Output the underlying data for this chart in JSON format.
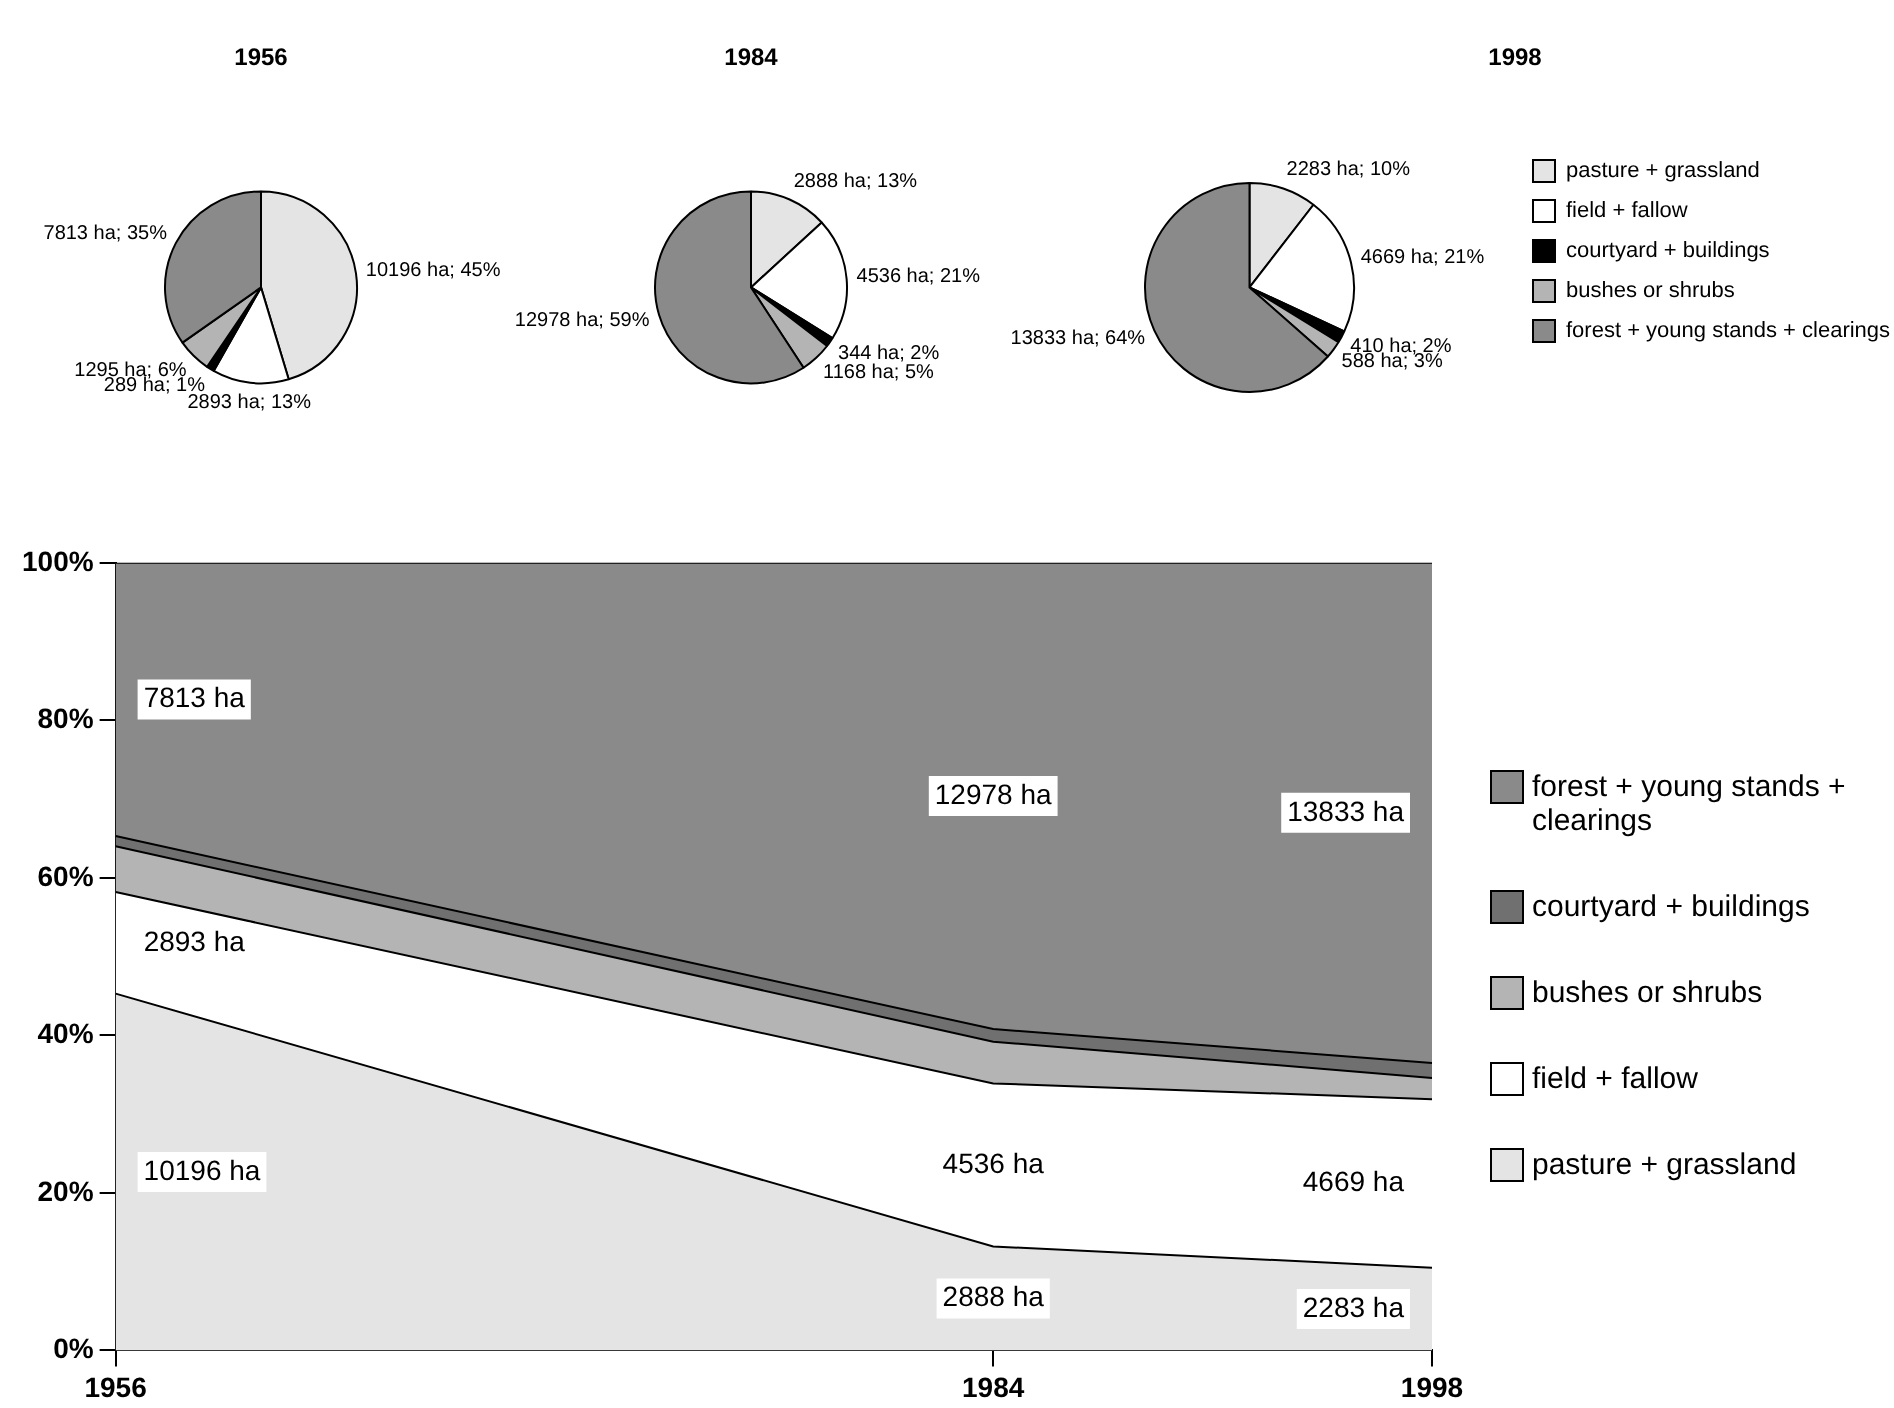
{
  "chart_data": [
    {
      "type": "pie",
      "title": "1956",
      "values": [
        10196,
        2893,
        289,
        1295,
        7813
      ],
      "colors": [
        "#e4e4e4",
        "#ffffff",
        "#000000",
        "#b4b4b4",
        "#8a8a8a"
      ],
      "value_labels": [
        "10196 ha; 45%",
        "2893 ha; 13%",
        "289 ha; 1%",
        "1295 ha; 6%",
        "7813 ha; 35%"
      ]
    },
    {
      "type": "pie",
      "title": "1984",
      "values": [
        2888,
        4536,
        344,
        1168,
        12978
      ],
      "colors": [
        "#e4e4e4",
        "#ffffff",
        "#000000",
        "#b4b4b4",
        "#8a8a8a"
      ],
      "value_labels": [
        "2888 ha; 13%",
        "4536 ha; 21%",
        "344 ha; 2%",
        "1168 ha; 5%",
        "12978 ha; 59%"
      ]
    },
    {
      "type": "pie",
      "title": "1998",
      "categories": [
        "pasture + grassland",
        "field + fallow",
        "courtyard + buildings",
        "bushes or shrubs",
        "forest + young stands + clearings"
      ],
      "values": [
        2283,
        4669,
        410,
        588,
        13833
      ],
      "colors": [
        "#e4e4e4",
        "#ffffff",
        "#000000",
        "#b4b4b4",
        "#8a8a8a"
      ],
      "value_labels": [
        "2283 ha; 10%",
        "4669 ha; 21%",
        "410 ha; 2%",
        "588 ha; 3%",
        "13833 ha; 64%"
      ],
      "legend": "right"
    },
    {
      "type": "area",
      "stacked": true,
      "x": [
        1956,
        1984,
        1998
      ],
      "xlim": [
        1956,
        1998
      ],
      "xticks": [
        1956,
        1984,
        1998
      ],
      "ylim": [
        0,
        100
      ],
      "yticks": [
        {
          "value": 0,
          "label": "0%"
        },
        {
          "value": 20,
          "label": "20%"
        },
        {
          "value": 40,
          "label": "40%"
        },
        {
          "value": 60,
          "label": "60%"
        },
        {
          "value": 80,
          "label": "80%"
        },
        {
          "value": 100,
          "label": "100%"
        }
      ],
      "legend": "right",
      "series": [
        {
          "name": "pasture + grassland",
          "color": "#e4e4e4",
          "values": [
            45.3,
            13.2,
            10.5
          ]
        },
        {
          "name": "field + fallow",
          "color": "#ffffff",
          "values": [
            12.9,
            20.7,
            21.4
          ]
        },
        {
          "name": "bushes or shrubs",
          "color": "#b4b4b4",
          "values": [
            5.8,
            5.3,
            2.7
          ]
        },
        {
          "name": "courtyard + buildings",
          "color": "#707070",
          "values": [
            1.3,
            1.6,
            1.9
          ]
        },
        {
          "name": "forest + young stands + clearings",
          "color": "#8a8a8a",
          "values": [
            34.7,
            59.2,
            63.5
          ]
        }
      ],
      "annotations": [
        "10196 ha",
        "2888 ha",
        "2283 ha",
        "2893 ha",
        "4536 ha",
        "4669 ha",
        "7813 ha",
        "12978 ha",
        "13833 ha"
      ]
    }
  ]
}
